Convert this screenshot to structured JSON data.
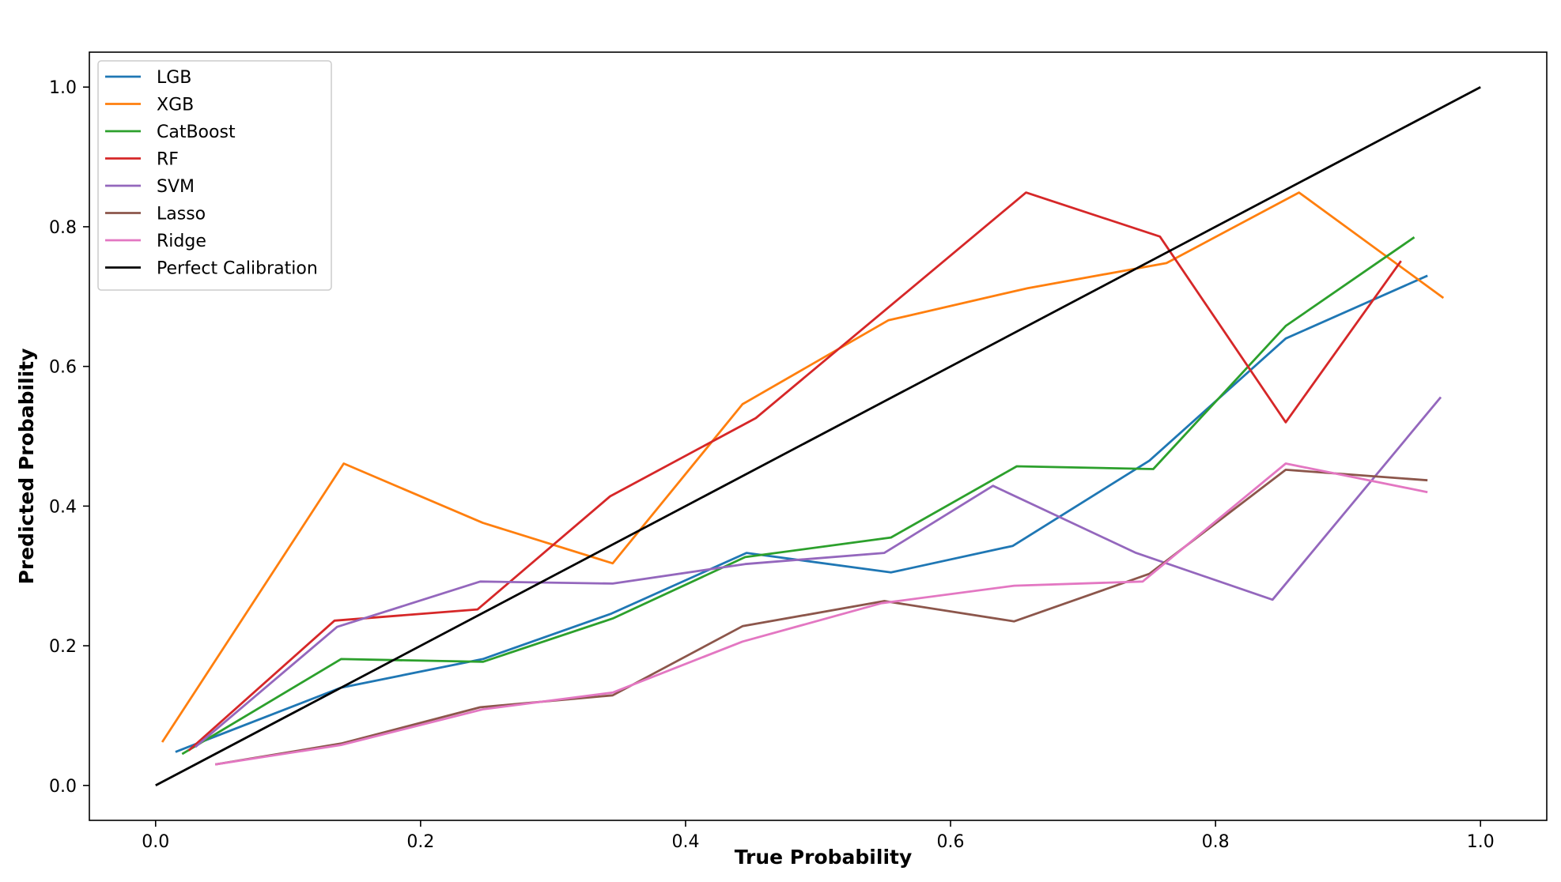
{
  "chart_data": {
    "type": "line",
    "title": "",
    "xlabel": "True Probability",
    "ylabel": "Predicted Probability",
    "xlim": [
      -0.05,
      1.05
    ],
    "ylim": [
      -0.05,
      1.05
    ],
    "xticks": [
      0.0,
      0.2,
      0.4,
      0.6,
      0.8,
      1.0
    ],
    "yticks": [
      0.0,
      0.2,
      0.4,
      0.6,
      0.8,
      1.0
    ],
    "xtick_labels": [
      "0.0",
      "0.2",
      "0.4",
      "0.6",
      "0.8",
      "1.0"
    ],
    "ytick_labels": [
      "0.0",
      "0.2",
      "0.4",
      "0.6",
      "0.8",
      "1.0"
    ],
    "grid": false,
    "legend_position": "top-left",
    "series": [
      {
        "name": "LGB",
        "color": "#1f77b4",
        "x": [
          0.015,
          0.14,
          0.247,
          0.344,
          0.446,
          0.555,
          0.647,
          0.75,
          0.853,
          0.96
        ],
        "y": [
          0.048,
          0.14,
          0.181,
          0.246,
          0.333,
          0.305,
          0.343,
          0.465,
          0.64,
          0.73
        ]
      },
      {
        "name": "XGB",
        "color": "#ff7f0e",
        "x": [
          0.005,
          0.142,
          0.247,
          0.345,
          0.443,
          0.553,
          0.658,
          0.763,
          0.863,
          0.972
        ],
        "y": [
          0.062,
          0.461,
          0.376,
          0.318,
          0.546,
          0.666,
          0.712,
          0.748,
          0.849,
          0.698
        ]
      },
      {
        "name": "CatBoost",
        "color": "#2ca02c",
        "x": [
          0.02,
          0.14,
          0.247,
          0.345,
          0.445,
          0.555,
          0.65,
          0.753,
          0.853,
          0.95
        ],
        "y": [
          0.045,
          0.181,
          0.177,
          0.239,
          0.327,
          0.355,
          0.457,
          0.453,
          0.658,
          0.785
        ]
      },
      {
        "name": "RF",
        "color": "#d62728",
        "x": [
          0.025,
          0.135,
          0.243,
          0.343,
          0.453,
          0.657,
          0.758,
          0.853,
          0.94
        ],
        "y": [
          0.05,
          0.236,
          0.252,
          0.414,
          0.526,
          0.849,
          0.786,
          0.52,
          0.751
        ]
      },
      {
        "name": "SVM",
        "color": "#9467bd",
        "x": [
          0.03,
          0.137,
          0.245,
          0.345,
          0.445,
          0.55,
          0.632,
          0.74,
          0.843,
          0.97
        ],
        "y": [
          0.055,
          0.227,
          0.292,
          0.289,
          0.317,
          0.333,
          0.429,
          0.333,
          0.266,
          0.556
        ]
      },
      {
        "name": "Lasso",
        "color": "#8c564b",
        "x": [
          0.045,
          0.14,
          0.245,
          0.345,
          0.443,
          0.55,
          0.648,
          0.75,
          0.853,
          0.96
        ],
        "y": [
          0.03,
          0.06,
          0.112,
          0.129,
          0.228,
          0.264,
          0.235,
          0.303,
          0.452,
          0.437
        ]
      },
      {
        "name": "Ridge",
        "color": "#e377c2",
        "x": [
          0.045,
          0.14,
          0.247,
          0.345,
          0.443,
          0.548,
          0.648,
          0.745,
          0.853,
          0.96
        ],
        "y": [
          0.03,
          0.058,
          0.109,
          0.133,
          0.206,
          0.261,
          0.286,
          0.292,
          0.461,
          0.42
        ]
      },
      {
        "name": "Perfect Calibration",
        "color": "#000000",
        "x": [
          0.0,
          1.0
        ],
        "y": [
          0.0,
          1.0
        ]
      }
    ]
  }
}
